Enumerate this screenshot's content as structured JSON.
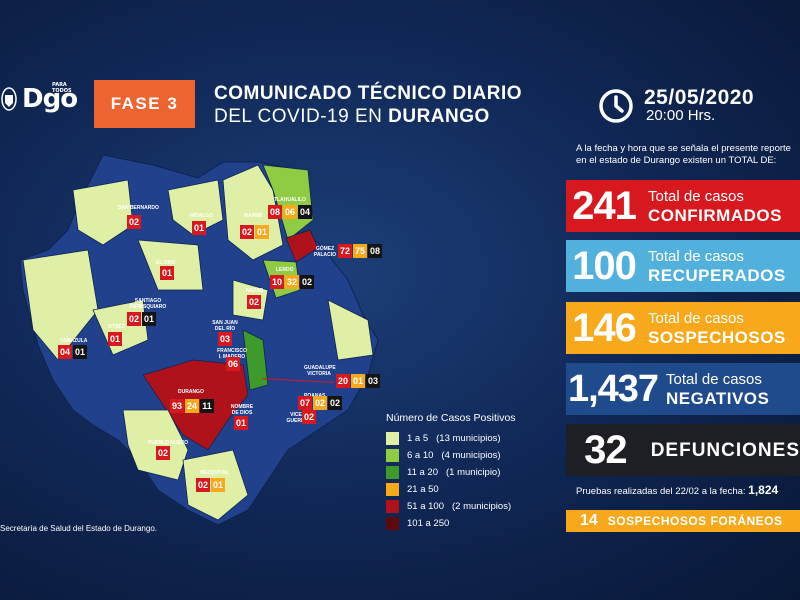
{
  "header": {
    "logo_small": "PARA TODOS",
    "logo_text": "Dgo",
    "phase": "FASE 3",
    "title_line1": "COMUNICADO TÉCNICO DIARIO",
    "title_line2_prefix": "DEL COVID-19 EN ",
    "title_line2_bold": "DURANGO",
    "date": "25/05/2020",
    "time": "20:00 Hrs."
  },
  "intro": {
    "line1": "A la fecha y hora que se señala el presente reporte",
    "line2": "en el estado de Durango existen un TOTAL DE:"
  },
  "stats": {
    "confirmed": {
      "value": "241",
      "line1": "Total de casos",
      "line2": "CONFIRMADOS",
      "color": "#d7191f"
    },
    "recovered": {
      "value": "100",
      "line1": "Total de casos",
      "line2": "RECUPERADOS",
      "color": "#52b1dc"
    },
    "suspected": {
      "value": "146",
      "line1": "Total de casos",
      "line2": "SOSPECHOSOS",
      "color": "#f7a81b"
    },
    "negative": {
      "value": "1,437",
      "line1": "Total de casos",
      "line2": "NEGATIVOS",
      "color": "#1f4b8c"
    },
    "deaths": {
      "value": "32",
      "line2": "DEFUNCIONES",
      "color": "#1e1f24"
    }
  },
  "tests": {
    "text": "Pruebas realizadas del 22/02 a la fecha:",
    "value": "1,824"
  },
  "foreign": {
    "value": "14",
    "text": "SOSPECHOSOS FORÁNEOS"
  },
  "source": "Secretaría de Salud del Estado de Durango.",
  "legend": {
    "title": "Número de Casos Positivos",
    "items": [
      {
        "label": "1 a 5",
        "note": "(13 municipios)",
        "color": "#dff0a6"
      },
      {
        "label": "6 a 10",
        "note": "(4 municipios)",
        "color": "#8fcb43"
      },
      {
        "label": "11 a 20",
        "note": "(1 municipio)",
        "color": "#3f9a2c"
      },
      {
        "label": "21 a 50",
        "note": "",
        "color": "#f7a81b"
      },
      {
        "label": "51 a 100",
        "note": "(2 municipios)",
        "color": "#b0121c"
      },
      {
        "label": "101 a 250",
        "note": "",
        "color": "#5a0a0e"
      }
    ]
  },
  "municipalities": [
    {
      "name": "SAN BERNARDO",
      "values": [
        "02"
      ]
    },
    {
      "name": "HIDALGO",
      "values": [
        "01"
      ]
    },
    {
      "name": "MAPIMÍ",
      "values": [
        "02",
        "01"
      ]
    },
    {
      "name": "TLAHUALILO",
      "values": [
        "08",
        "06",
        "04"
      ]
    },
    {
      "name": "GÓMEZ PALACIO",
      "values": [
        "72",
        "75",
        "08"
      ]
    },
    {
      "name": "EL ORO",
      "values": [
        "01"
      ]
    },
    {
      "name": "LERDO",
      "values": [
        "10",
        "32",
        "02"
      ]
    },
    {
      "name": "NAZAS",
      "values": [
        "02"
      ]
    },
    {
      "name": "SANTIAGO PAPASQUIARO",
      "values": [
        "02",
        "01"
      ]
    },
    {
      "name": "OTÁEZ",
      "values": [
        "01"
      ]
    },
    {
      "name": "TAMAZULA",
      "values": [
        "04",
        "01"
      ]
    },
    {
      "name": "SAN JUAN DEL RÍO",
      "values": [
        "03"
      ]
    },
    {
      "name": "FRANCISCO I. MADERO",
      "values": [
        "06"
      ]
    },
    {
      "name": "GUADALUPE VICTORIA",
      "values": [
        "20",
        "01",
        "03"
      ]
    },
    {
      "name": "DURANGO",
      "values": [
        "93",
        "24",
        "11"
      ]
    },
    {
      "name": "POANAS",
      "values": [
        "07",
        "02",
        "02"
      ]
    },
    {
      "name": "NOMBRE DE DIOS",
      "values": [
        "01"
      ]
    },
    {
      "name": "VICENTE GUERRERO",
      "values": [
        "02"
      ]
    },
    {
      "name": "PUEBLO NUEVO",
      "values": [
        "02"
      ]
    },
    {
      "name": "MEZQUITAL",
      "values": [
        "02",
        "01"
      ]
    }
  ]
}
